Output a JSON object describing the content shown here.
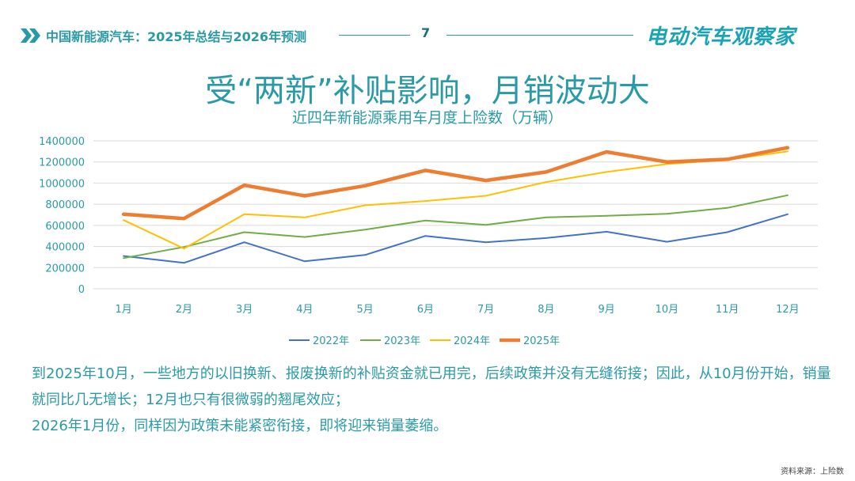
{
  "header": {
    "title": "中国新能源汽车：2025年总结与2026年预测",
    "page_number": "7",
    "brand": "电动汽车观察家"
  },
  "slide": {
    "title": "受“两新”补贴影响，月销波动大",
    "paragraphs": [
      "到2025年10月，一些地方的以旧换新、报废换新的补贴资金就已用完，后续政策并没有无缝衔接；因此，从10月份开始，销量就同比几无增长；12月也只有很微弱的翘尾效应；",
      "2026年1月份，同样因为政策未能紧密衔接，即将迎来销量萎缩。"
    ],
    "source": "资料来源：上险数"
  },
  "colors": {
    "accent": "#2a9aa6",
    "series_2022": "#4472c4",
    "series_2023": "#70ad47",
    "series_2024": "#ffc000",
    "series_2025": "#ed7d31"
  },
  "chart_data": {
    "type": "line",
    "title": "近四年新能源乘用车月度上险数（万辆）",
    "xlabel": "",
    "ylabel": "",
    "categories": [
      "1月",
      "2月",
      "3月",
      "4月",
      "5月",
      "6月",
      "7月",
      "8月",
      "9月",
      "10月",
      "11月",
      "12月"
    ],
    "ylim": [
      0,
      1400000
    ],
    "yticks": [
      "0",
      "200000",
      "400000",
      "600000",
      "800000",
      "1000000",
      "1200000",
      "1400000"
    ],
    "grid": true,
    "legend": "bottom",
    "series": [
      {
        "name": "2022年",
        "values": [
          310000,
          245000,
          440000,
          260000,
          320000,
          500000,
          440000,
          480000,
          540000,
          445000,
          535000,
          705000
        ]
      },
      {
        "name": "2023年",
        "values": [
          290000,
          395000,
          535000,
          490000,
          560000,
          645000,
          605000,
          675000,
          690000,
          710000,
          765000,
          885000
        ]
      },
      {
        "name": "2024年",
        "values": [
          650000,
          380000,
          705000,
          675000,
          790000,
          830000,
          880000,
          1010000,
          1105000,
          1180000,
          1220000,
          1300000
        ]
      },
      {
        "name": "2025年",
        "values": [
          705000,
          665000,
          980000,
          880000,
          975000,
          1120000,
          1025000,
          1105000,
          1295000,
          1200000,
          1225000,
          1335000
        ]
      }
    ]
  }
}
